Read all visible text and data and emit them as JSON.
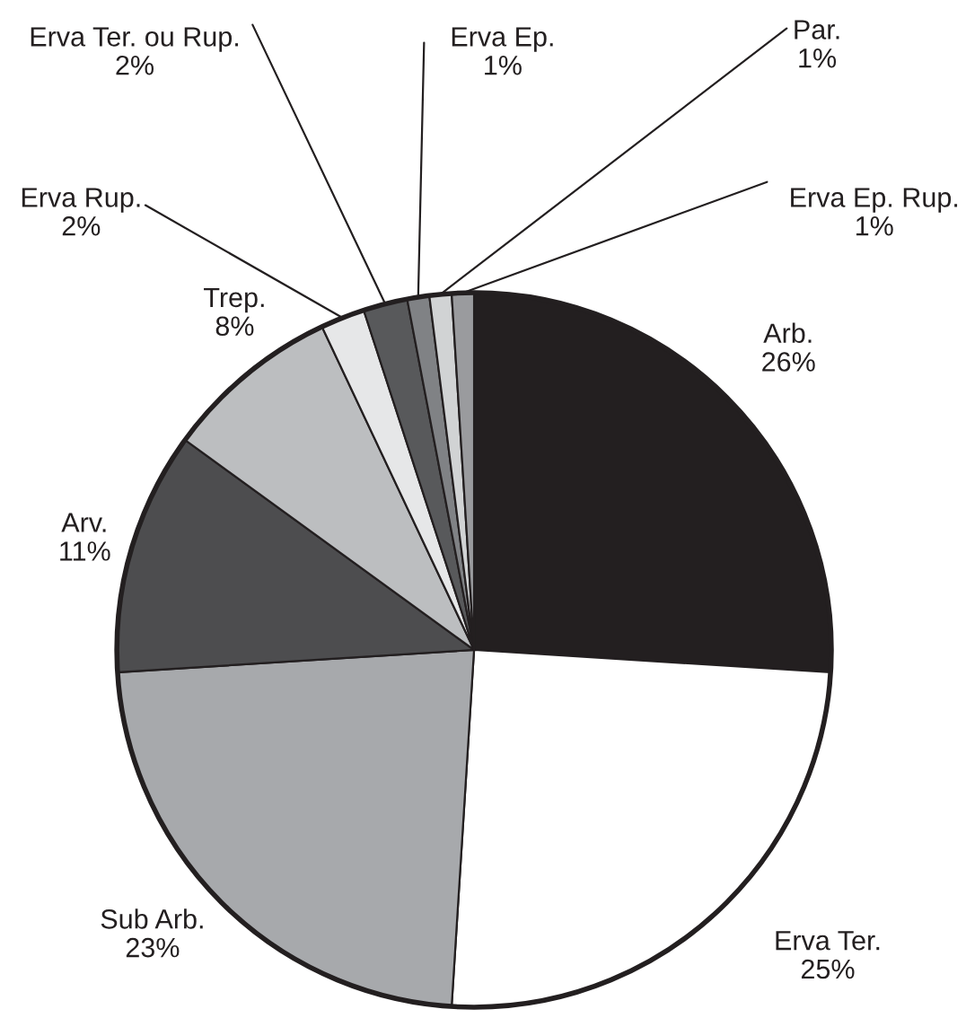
{
  "chart_data": {
    "type": "pie",
    "categories": [
      "Arb.",
      "Erva Ter.",
      "Sub Arb.",
      "Arv.",
      "Trep.",
      "Erva Rup.",
      "Erva Ter. ou Rup.",
      "Erva Ep.",
      "Par.",
      "Erva Ep. Rup."
    ],
    "values": [
      26,
      25,
      23,
      11,
      8,
      2,
      2,
      1,
      1,
      1
    ],
    "colors": [
      "#231f20",
      "#ffffff",
      "#a7a9ac",
      "#4d4d4f",
      "#bcbec0",
      "#e6e7e8",
      "#58595b",
      "#808285",
      "#d1d3d4",
      "#9a9b9e"
    ],
    "value_labels": [
      "26%",
      "25%",
      "23%",
      "11%",
      "8%",
      "2%",
      "2%",
      "1%",
      "1%",
      "1%"
    ]
  }
}
